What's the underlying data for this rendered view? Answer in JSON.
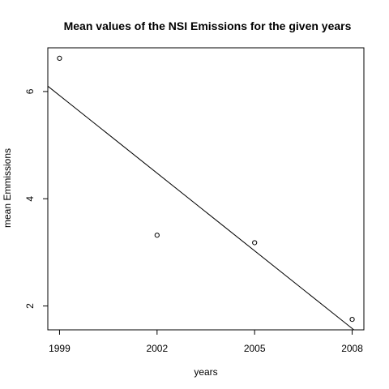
{
  "chart_data": {
    "type": "scatter",
    "title": "Mean values of the NSI Emissions for the given years",
    "xlabel": "years",
    "ylabel": "mean Emmissions",
    "x": [
      1999,
      2002,
      2005,
      2008
    ],
    "y": [
      6.62,
      3.32,
      3.18,
      1.75
    ],
    "x_ticks": [
      1999,
      2002,
      2005,
      2008
    ],
    "y_ticks": [
      2,
      4,
      6
    ],
    "xlim": [
      1998.64,
      2008.36
    ],
    "ylim": [
      1.555,
      6.815
    ],
    "trend_line": {
      "intercept_at_1998.64": 6.1,
      "slope": -0.4829
    },
    "marker": "open-circle",
    "grid": false,
    "legend": "none"
  }
}
